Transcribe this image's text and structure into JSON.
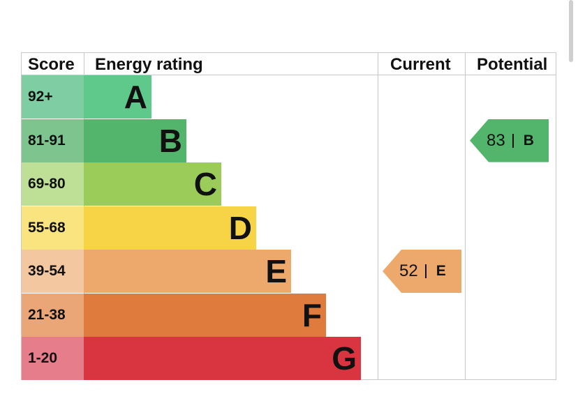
{
  "headers": {
    "score": "Score",
    "energy_rating": "Energy rating",
    "current": "Current",
    "potential": "Potential"
  },
  "chart_data": {
    "type": "bar",
    "categories": [
      "A",
      "B",
      "C",
      "D",
      "E",
      "F",
      "G"
    ],
    "bands": [
      {
        "letter": "A",
        "range": "92+",
        "color": "#5ec98b",
        "score_color": "#7fcda2"
      },
      {
        "letter": "B",
        "range": "81-91",
        "color": "#52b56b",
        "score_color": "#7ec48f"
      },
      {
        "letter": "C",
        "range": "69-80",
        "color": "#9bcb59",
        "score_color": "#bde096"
      },
      {
        "letter": "D",
        "range": "55-68",
        "color": "#f6d446",
        "score_color": "#f9e47f"
      },
      {
        "letter": "E",
        "range": "39-54",
        "color": "#eda96c",
        "score_color": "#f3c8a1"
      },
      {
        "letter": "F",
        "range": "21-38",
        "color": "#df7b3c",
        "score_color": "#eaa677"
      },
      {
        "letter": "G",
        "range": "1-20",
        "color": "#d83541",
        "score_color": "#e57d8a"
      }
    ],
    "current": {
      "value": "52",
      "letter": "E",
      "color": "#eda96c"
    },
    "potential": {
      "value": "83",
      "letter": "B",
      "color": "#52b56b"
    }
  }
}
